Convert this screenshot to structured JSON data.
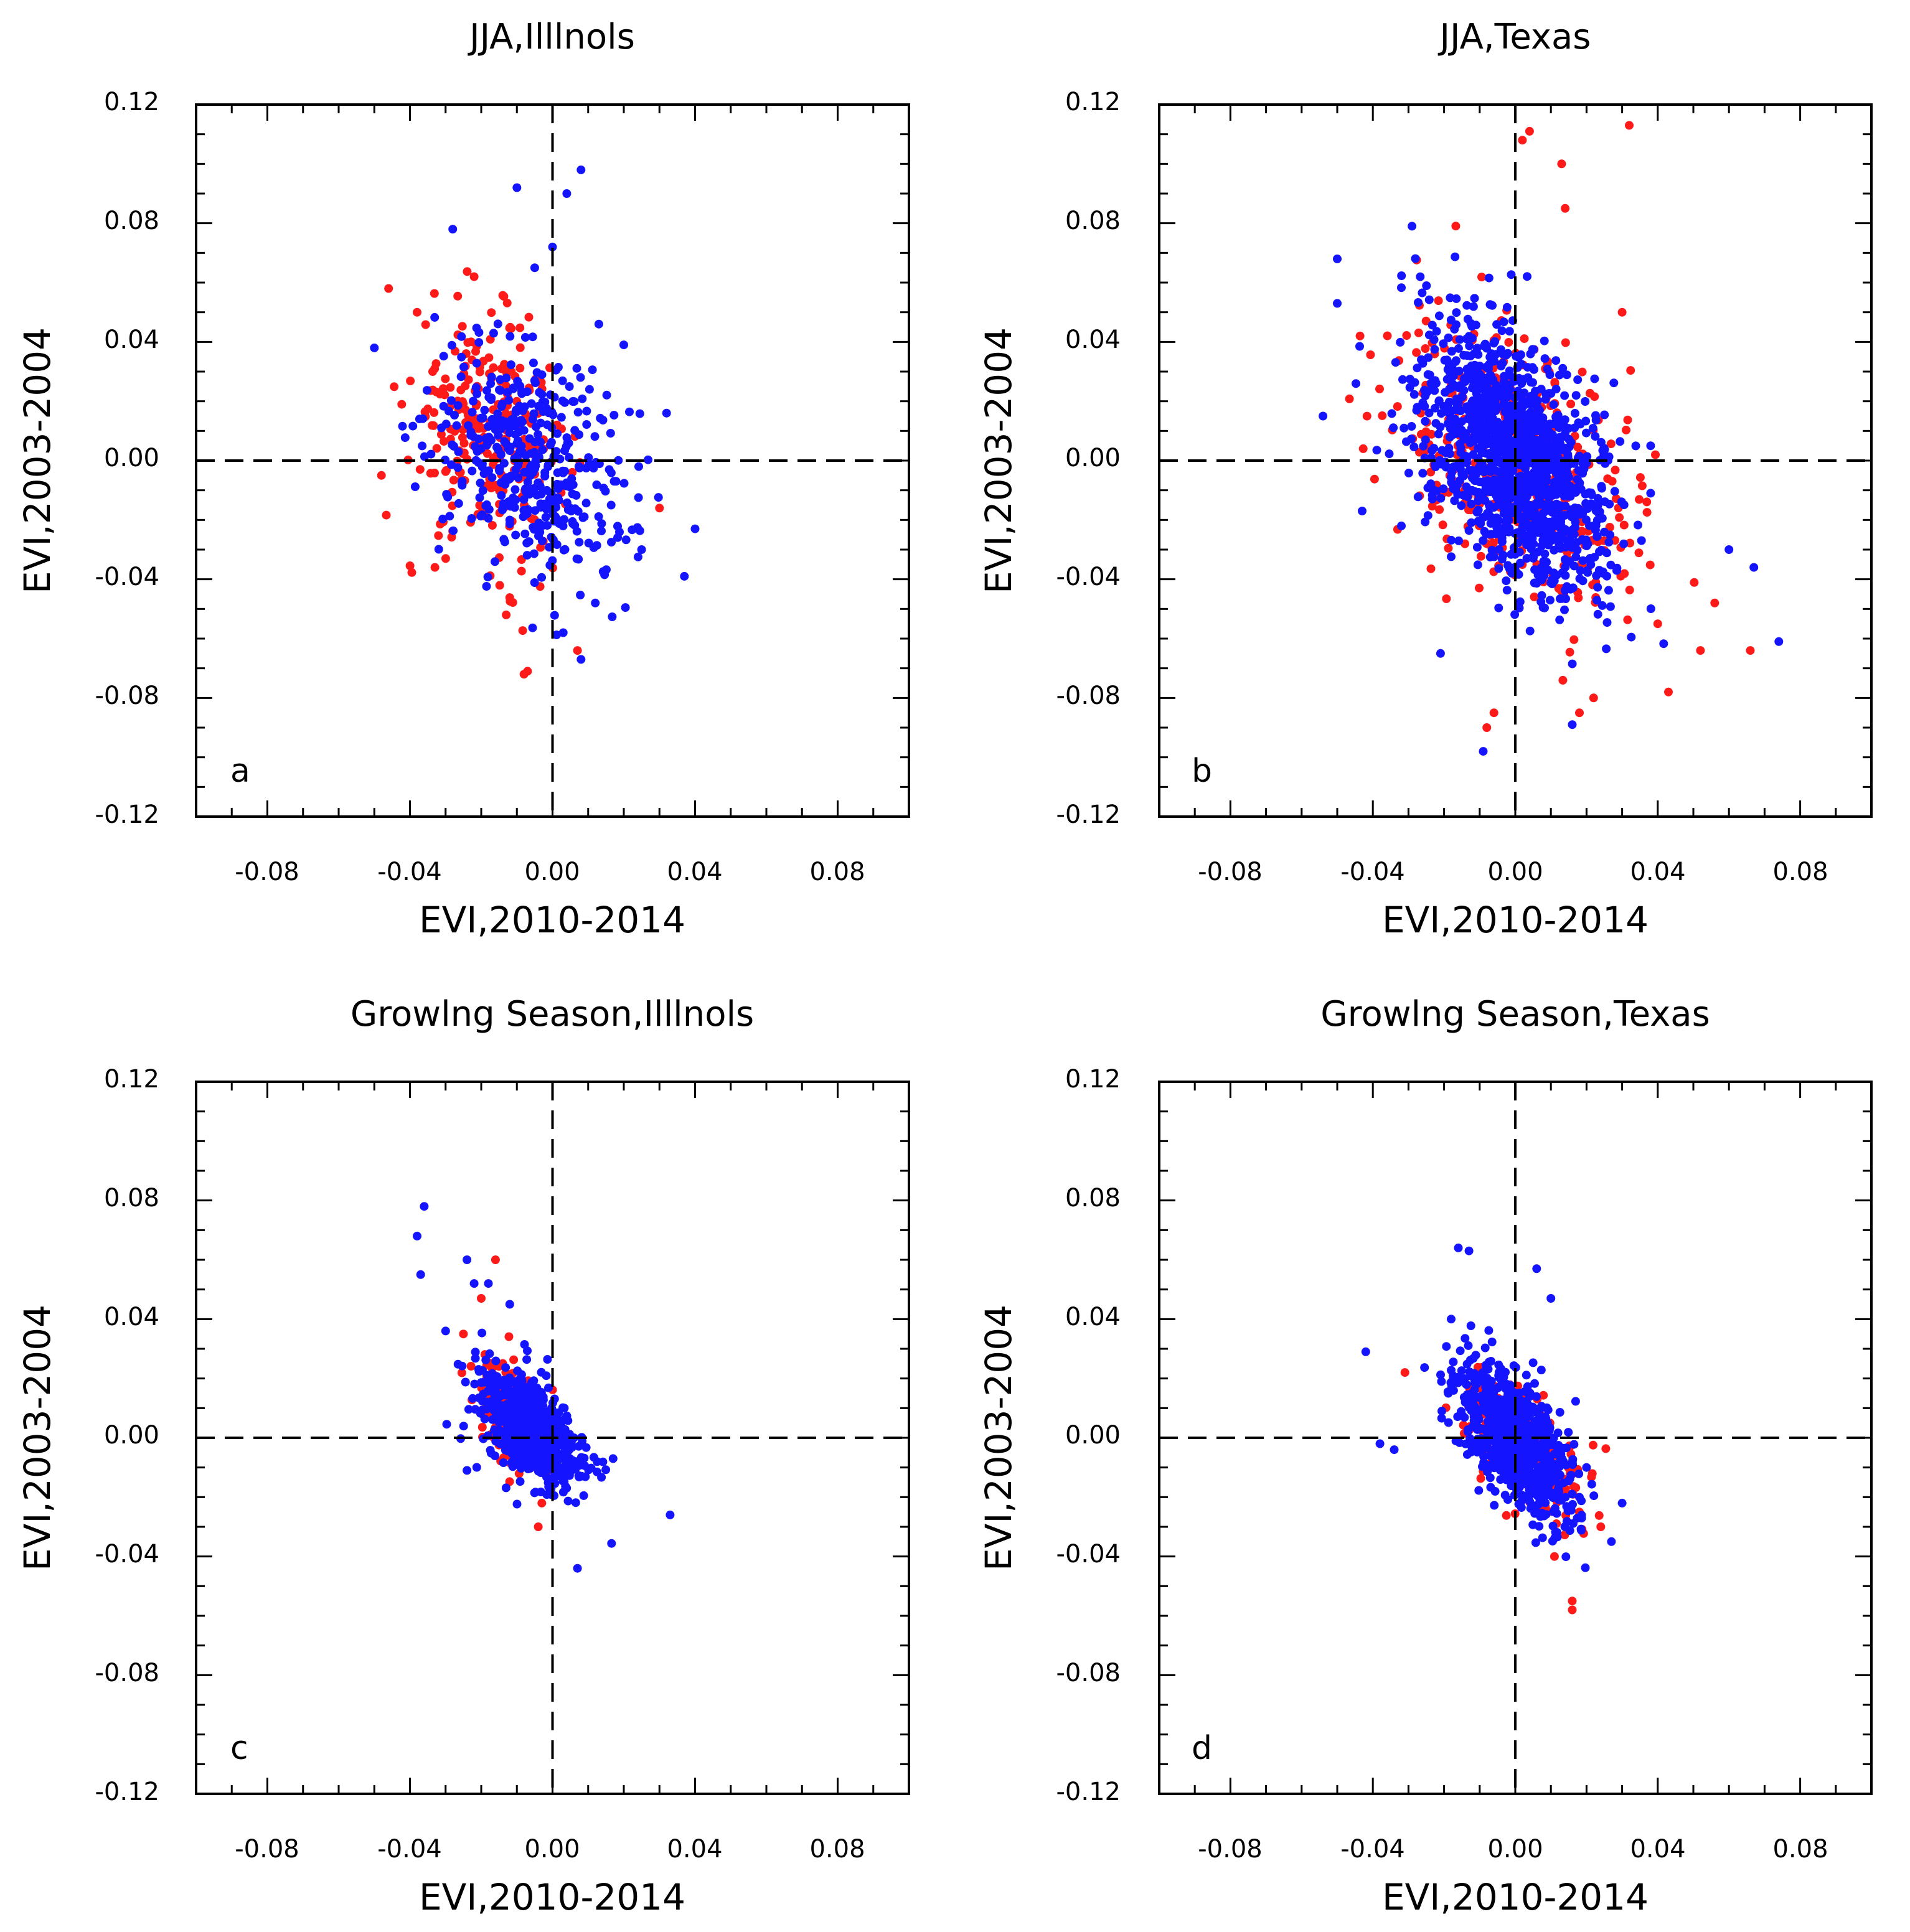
{
  "colors": {
    "red_series": "#ff1a1a",
    "blue_series": "#1414ff",
    "axis": "#000000"
  },
  "chart_data": [
    {
      "type": "scatter",
      "panel": "a",
      "title": "JJA,Illlnols",
      "xlabel": "EVI,2010-2014",
      "ylabel": "EVI,2003-2004",
      "xlim": [
        -0.1,
        0.1
      ],
      "ylim": [
        -0.12,
        0.12
      ],
      "xticklabels": [
        "-0.08",
        "-0.04",
        "0.00",
        "0.04",
        "0.08"
      ],
      "yticklabels": [
        "-0.12",
        "-0.08",
        "-0.04",
        "0.00",
        "0.04",
        "0.08",
        "0.12"
      ],
      "series": [
        {
          "name": "red",
          "color": "#ff1a1a",
          "center": [
            -0.018,
            0.008
          ],
          "spread": [
            0.011,
            0.02
          ],
          "rho": -0.25,
          "n": 260,
          "extra": [
            [
              -0.046,
              0.058
            ],
            [
              -0.022,
              0.062
            ],
            [
              -0.038,
              0.05
            ],
            [
              -0.048,
              -0.005
            ],
            [
              -0.033,
              -0.036
            ],
            [
              -0.013,
              -0.052
            ],
            [
              -0.007,
              -0.071
            ],
            [
              0.007,
              -0.064
            ],
            [
              0.03,
              -0.016
            ],
            [
              -0.008,
              -0.072
            ]
          ]
        },
        {
          "name": "blue",
          "color": "#1414ff",
          "center": [
            -0.006,
            0.0
          ],
          "spread": [
            0.014,
            0.02
          ],
          "rho": -0.35,
          "n": 420,
          "extra": [
            [
              -0.028,
              0.078
            ],
            [
              -0.01,
              0.092
            ],
            [
              0.004,
              0.09
            ],
            [
              0.008,
              0.098
            ],
            [
              0.0,
              0.072
            ],
            [
              -0.005,
              0.065
            ],
            [
              -0.05,
              0.038
            ],
            [
              0.013,
              0.046
            ],
            [
              0.02,
              0.039
            ],
            [
              0.032,
              0.016
            ],
            [
              0.04,
              -0.023
            ],
            [
              0.037,
              -0.039
            ],
            [
              0.008,
              -0.067
            ],
            [
              0.003,
              -0.058
            ],
            [
              0.012,
              -0.048
            ],
            [
              0.025,
              -0.03
            ]
          ]
        }
      ]
    },
    {
      "type": "scatter",
      "panel": "b",
      "title": "JJA,Texas",
      "xlabel": "EVI,2010-2014",
      "ylabel": "EVI,2003-2004",
      "xlim": [
        -0.1,
        0.1
      ],
      "ylim": [
        -0.12,
        0.12
      ],
      "xticklabels": [
        "-0.08",
        "-0.04",
        "0.00",
        "0.04",
        "0.08"
      ],
      "yticklabels": [
        "-0.12",
        "-0.08",
        "-0.04",
        "0.00",
        "0.04",
        "0.08",
        "0.12"
      ],
      "series": [
        {
          "name": "red",
          "color": "#ff1a1a",
          "center": [
            0.0,
            0.0
          ],
          "spread": [
            0.016,
            0.024
          ],
          "rho": -0.45,
          "n": 420,
          "extra": [
            [
              0.002,
              0.108
            ],
            [
              0.004,
              0.111
            ],
            [
              0.032,
              0.113
            ],
            [
              0.013,
              0.1
            ],
            [
              0.014,
              0.085
            ],
            [
              0.03,
              0.05
            ],
            [
              0.04,
              -0.055
            ],
            [
              0.052,
              -0.064
            ],
            [
              0.056,
              -0.048
            ],
            [
              0.066,
              -0.064
            ],
            [
              0.043,
              -0.078
            ],
            [
              0.022,
              -0.08
            ],
            [
              -0.008,
              -0.09
            ],
            [
              -0.006,
              -0.085
            ],
            [
              0.018,
              -0.085
            ]
          ]
        },
        {
          "name": "blue",
          "color": "#1414ff",
          "center": [
            0.0,
            0.0
          ],
          "spread": [
            0.013,
            0.022
          ],
          "rho": -0.5,
          "n": 1300,
          "extra": [
            [
              -0.029,
              0.079
            ],
            [
              -0.05,
              0.068
            ],
            [
              -0.05,
              0.053
            ],
            [
              -0.054,
              0.015
            ],
            [
              -0.043,
              -0.017
            ],
            [
              -0.032,
              -0.022
            ],
            [
              -0.009,
              -0.098
            ],
            [
              0.06,
              -0.03
            ],
            [
              0.067,
              -0.036
            ],
            [
              0.074,
              -0.061
            ],
            [
              0.038,
              -0.011
            ],
            [
              0.038,
              0.005
            ],
            [
              0.016,
              -0.089
            ],
            [
              -0.021,
              -0.065
            ]
          ]
        }
      ]
    },
    {
      "type": "scatter",
      "panel": "c",
      "title": "Growlng Season,Illlnols",
      "xlabel": "EVI,2010-2014",
      "ylabel": "EVI,2003-2004",
      "xlim": [
        -0.1,
        0.1
      ],
      "ylim": [
        -0.12,
        0.12
      ],
      "xticklabels": [
        "-0.08",
        "-0.04",
        "0.00",
        "0.04",
        "0.08"
      ],
      "yticklabels": [
        "-0.12",
        "-0.08",
        "-0.04",
        "0.00",
        "0.04",
        "0.08",
        "0.12"
      ],
      "series": [
        {
          "name": "red",
          "color": "#ff1a1a",
          "center": [
            -0.012,
            0.008
          ],
          "spread": [
            0.005,
            0.01
          ],
          "rho": -0.5,
          "n": 160,
          "extra": [
            [
              -0.016,
              0.06
            ],
            [
              -0.02,
              0.047
            ],
            [
              -0.025,
              0.035
            ],
            [
              -0.003,
              -0.022
            ],
            [
              -0.004,
              -0.03
            ]
          ]
        },
        {
          "name": "blue",
          "color": "#1414ff",
          "center": [
            -0.006,
            0.002
          ],
          "spread": [
            0.007,
            0.01
          ],
          "rho": -0.55,
          "n": 700,
          "extra": [
            [
              -0.036,
              0.078
            ],
            [
              -0.038,
              0.068
            ],
            [
              -0.037,
              0.055
            ],
            [
              -0.03,
              0.036
            ],
            [
              -0.024,
              0.06
            ],
            [
              -0.022,
              0.052
            ],
            [
              -0.018,
              0.052
            ],
            [
              -0.012,
              0.045
            ],
            [
              0.033,
              -0.026
            ],
            [
              0.007,
              -0.044
            ],
            [
              -0.024,
              -0.011
            ],
            [
              0.017,
              -0.007
            ]
          ]
        }
      ]
    },
    {
      "type": "scatter",
      "panel": "d",
      "title": "Growlng Season,Texas",
      "xlabel": "EVI,2010-2014",
      "ylabel": "EVI,2003-2004",
      "xlim": [
        -0.1,
        0.1
      ],
      "ylim": [
        -0.12,
        0.12
      ],
      "xticklabels": [
        "-0.08",
        "-0.04",
        "0.00",
        "0.04",
        "0.08"
      ],
      "yticklabels": [
        "-0.12",
        "-0.08",
        "-0.04",
        "0.00",
        "0.04",
        "0.08",
        "0.12"
      ],
      "series": [
        {
          "name": "red",
          "color": "#ff1a1a",
          "center": [
            0.002,
            -0.003
          ],
          "spread": [
            0.008,
            0.012
          ],
          "rho": -0.55,
          "n": 220,
          "extra": [
            [
              -0.031,
              0.022
            ],
            [
              0.016,
              -0.055
            ],
            [
              0.016,
              -0.058
            ],
            [
              0.011,
              -0.04
            ],
            [
              0.024,
              -0.03
            ],
            [
              0.018,
              -0.025
            ]
          ]
        },
        {
          "name": "blue",
          "color": "#1414ff",
          "center": [
            0.0,
            0.0
          ],
          "spread": [
            0.008,
            0.013
          ],
          "rho": -0.6,
          "n": 800,
          "extra": [
            [
              -0.042,
              0.029
            ],
            [
              -0.038,
              -0.002
            ],
            [
              -0.034,
              -0.004
            ],
            [
              -0.016,
              0.064
            ],
            [
              -0.013,
              0.063
            ],
            [
              0.006,
              0.057
            ],
            [
              0.01,
              0.047
            ],
            [
              0.027,
              -0.035
            ],
            [
              0.03,
              -0.022
            ],
            [
              0.02,
              -0.01
            ],
            [
              -0.018,
              0.04
            ]
          ]
        }
      ]
    }
  ]
}
